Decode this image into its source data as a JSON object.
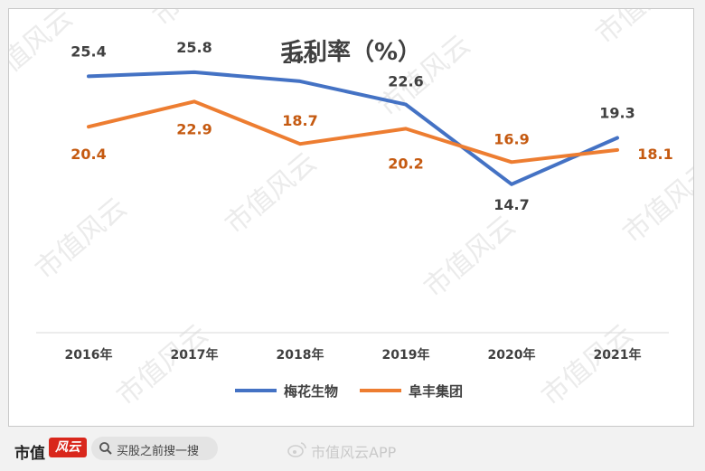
{
  "chart_data": {
    "type": "line",
    "title": "毛利率（%）",
    "categories": [
      "2016年",
      "2017年",
      "2018年",
      "2019年",
      "2020年",
      "2021年"
    ],
    "ylim": [
      0,
      30
    ],
    "grid": false,
    "legend_position": "bottom",
    "series": [
      {
        "name": "梅花生物",
        "color": "#4472c4",
        "label_color": "#404040",
        "values": [
          25.4,
          25.8,
          24.9,
          22.6,
          14.7,
          19.3
        ]
      },
      {
        "name": "阜丰集团",
        "color": "#ed7d31",
        "label_color": "#c55a11",
        "values": [
          20.4,
          22.9,
          18.7,
          20.2,
          16.9,
          18.1
        ]
      }
    ]
  },
  "watermark": "市值风云",
  "footer": {
    "brand": "市值",
    "brand_logo": "风云",
    "search_text": "买股之前搜一搜",
    "weibo_text": "市值风云APP"
  }
}
